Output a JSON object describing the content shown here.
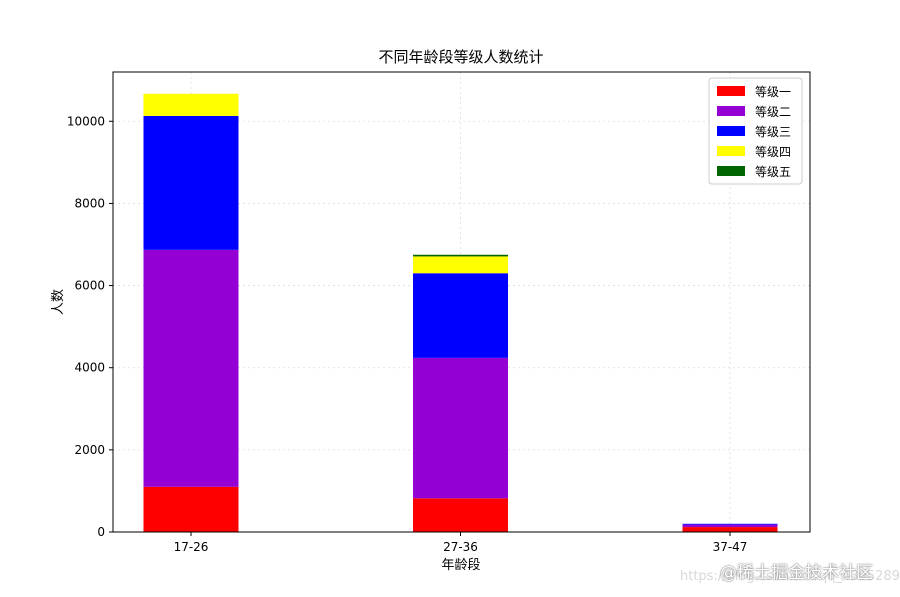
{
  "chart_data": {
    "type": "bar",
    "stacked": true,
    "title": "不同年龄段等级人数统计",
    "xlabel": "年龄段",
    "ylabel": "人数",
    "categories": [
      "17-26",
      "27-36",
      "37-47"
    ],
    "ylim": [
      0,
      11200
    ],
    "yticks": [
      0,
      2000,
      4000,
      6000,
      8000,
      10000
    ],
    "grid": true,
    "legend_position": "top-right",
    "series": [
      {
        "name": "等级一",
        "color": "#ff0000",
        "values": [
          1100,
          820,
          120
        ]
      },
      {
        "name": "等级二",
        "color": "#9400d3",
        "values": [
          5770,
          3420,
          60
        ]
      },
      {
        "name": "等级三",
        "color": "#0000ff",
        "values": [
          3260,
          2060,
          20
        ]
      },
      {
        "name": "等级四",
        "color": "#ffff00",
        "values": [
          540,
          410,
          0
        ]
      },
      {
        "name": "等级五",
        "color": "#006400",
        "values": [
          0,
          40,
          0
        ]
      }
    ]
  },
  "watermark": {
    "brand": "@稀土掘金技术社区",
    "url": "https://blog.csdn.net/qq_43952894"
  }
}
